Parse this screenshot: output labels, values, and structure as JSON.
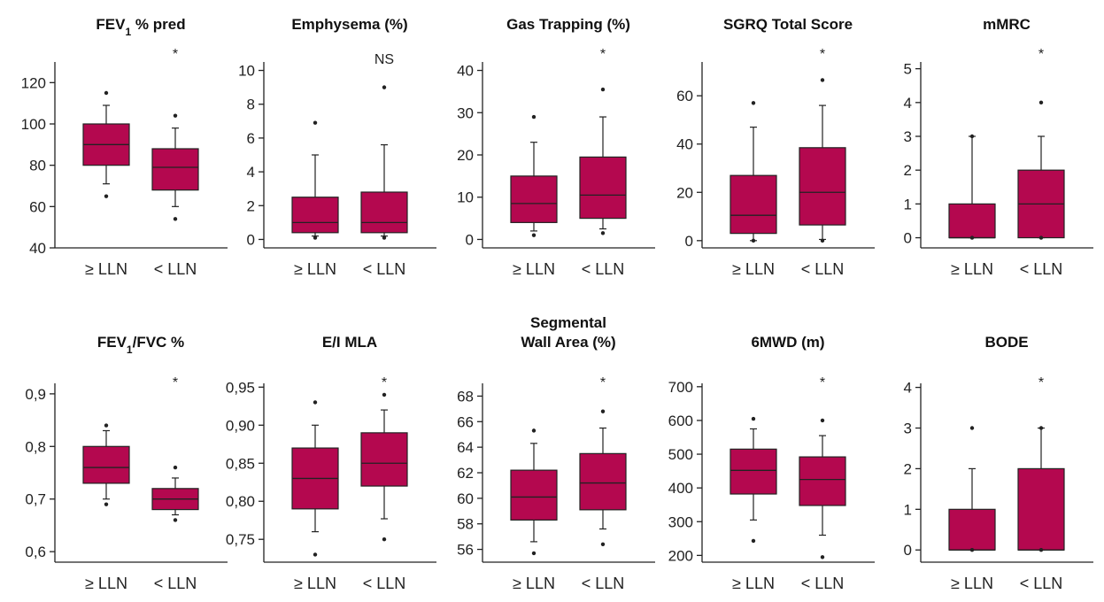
{
  "figure": {
    "box_color": "#B4084F",
    "stroke_color": "#222222"
  },
  "chart_data": [
    {
      "type": "box",
      "title": "FEV",
      "title_sub": "1",
      "title_suffix": " % pred",
      "annotation": "*",
      "yticks": [
        40,
        60,
        80,
        100,
        120
      ],
      "ylim": [
        40,
        130
      ],
      "categories": [
        "≥ LLN",
        "< LLN"
      ],
      "boxes": [
        {
          "whisker_low": 71,
          "q1": 80,
          "median": 90,
          "q3": 100,
          "whisker_high": 109,
          "outliers": [
            65,
            115
          ]
        },
        {
          "whisker_low": 60,
          "q1": 68,
          "median": 79,
          "q3": 88,
          "whisker_high": 98,
          "outliers": [
            54,
            104
          ]
        }
      ]
    },
    {
      "type": "box",
      "title": "Emphysema (%)",
      "annotation": "NS",
      "yticks": [
        0,
        2,
        4,
        6,
        8,
        10
      ],
      "ylim": [
        -0.5,
        10.5
      ],
      "categories": [
        "≥ LLN",
        "< LLN"
      ],
      "boxes": [
        {
          "whisker_low": 0.2,
          "q1": 0.4,
          "median": 1.0,
          "q3": 2.5,
          "whisker_high": 5.0,
          "outliers": [
            0.1,
            6.9
          ]
        },
        {
          "whisker_low": 0.2,
          "q1": 0.4,
          "median": 1.0,
          "q3": 2.8,
          "whisker_high": 5.6,
          "outliers": [
            0.1,
            9.0
          ]
        }
      ]
    },
    {
      "type": "box",
      "title": "Gas Trapping (%)",
      "annotation": "*",
      "yticks": [
        0,
        10,
        20,
        30,
        40
      ],
      "ylim": [
        -2,
        42
      ],
      "categories": [
        "≥ LLN",
        "< LLN"
      ],
      "boxes": [
        {
          "whisker_low": 2,
          "q1": 4,
          "median": 8.5,
          "q3": 15,
          "whisker_high": 23,
          "outliers": [
            1,
            29
          ]
        },
        {
          "whisker_low": 2.5,
          "q1": 5,
          "median": 10.5,
          "q3": 19.5,
          "whisker_high": 29,
          "outliers": [
            1.5,
            35.5
          ]
        }
      ]
    },
    {
      "type": "box",
      "title": "SGRQ Total Score",
      "annotation": "*",
      "yticks": [
        0,
        20,
        40,
        60
      ],
      "ylim": [
        -3,
        74
      ],
      "categories": [
        "≥ LLN",
        "< LLN"
      ],
      "boxes": [
        {
          "whisker_low": 0,
          "q1": 3,
          "median": 10.5,
          "q3": 27,
          "whisker_high": 47,
          "outliers": [
            0,
            57
          ]
        },
        {
          "whisker_low": 0.5,
          "q1": 6.5,
          "median": 20,
          "q3": 38.5,
          "whisker_high": 56,
          "outliers": [
            0,
            66.5
          ]
        }
      ]
    },
    {
      "type": "box",
      "title": "mMRC",
      "annotation": "*",
      "yticks": [
        0,
        1,
        2,
        3,
        4,
        5
      ],
      "ylim": [
        -0.3,
        5.2
      ],
      "categories": [
        "≥ LLN",
        "< LLN"
      ],
      "boxes": [
        {
          "whisker_low": 0,
          "q1": 0,
          "median": 0,
          "q3": 1,
          "whisker_high": 3,
          "outliers": [
            0,
            3
          ]
        },
        {
          "whisker_low": 0,
          "q1": 0,
          "median": 1,
          "q3": 2,
          "whisker_high": 3,
          "outliers": [
            0,
            4
          ]
        }
      ]
    },
    {
      "type": "box",
      "title": "FEV",
      "title_sub": "1",
      "title_suffix": "/FVC %",
      "annotation": "*",
      "yticks": [
        "0,6",
        "0,7",
        "0,8",
        "0,9"
      ],
      "ytick_values": [
        0.6,
        0.7,
        0.8,
        0.9
      ],
      "ylim": [
        0.58,
        0.92
      ],
      "categories": [
        "≥ LLN",
        "< LLN"
      ],
      "boxes": [
        {
          "whisker_low": 0.7,
          "q1": 0.73,
          "median": 0.76,
          "q3": 0.8,
          "whisker_high": 0.83,
          "outliers": [
            0.69,
            0.84
          ]
        },
        {
          "whisker_low": 0.67,
          "q1": 0.68,
          "median": 0.7,
          "q3": 0.72,
          "whisker_high": 0.74,
          "outliers": [
            0.66,
            0.76
          ]
        }
      ]
    },
    {
      "type": "box",
      "title": "E/I MLA",
      "annotation": "*",
      "yticks": [
        "0,75",
        "0,80",
        "0,85",
        "0,90",
        "0,95"
      ],
      "ytick_values": [
        0.75,
        0.8,
        0.85,
        0.9,
        0.95
      ],
      "ylim": [
        0.72,
        0.955
      ],
      "categories": [
        "≥ LLN",
        "< LLN"
      ],
      "boxes": [
        {
          "whisker_low": 0.76,
          "q1": 0.79,
          "median": 0.83,
          "q3": 0.87,
          "whisker_high": 0.9,
          "outliers": [
            0.73,
            0.93
          ]
        },
        {
          "whisker_low": 0.777,
          "q1": 0.82,
          "median": 0.85,
          "q3": 0.89,
          "whisker_high": 0.92,
          "outliers": [
            0.75,
            0.94
          ]
        }
      ]
    },
    {
      "type": "box",
      "title": "Segmental",
      "title_line2": "Wall Area (%)",
      "annotation": "*",
      "yticks": [
        56,
        58,
        60,
        62,
        64,
        66,
        68
      ],
      "ylim": [
        55,
        69
      ],
      "categories": [
        "≥ LLN",
        "< LLN"
      ],
      "boxes": [
        {
          "whisker_low": 56.6,
          "q1": 58.3,
          "median": 60.1,
          "q3": 62.2,
          "whisker_high": 64.3,
          "outliers": [
            55.7,
            65.3
          ]
        },
        {
          "whisker_low": 57.6,
          "q1": 59.1,
          "median": 61.2,
          "q3": 63.5,
          "whisker_high": 65.5,
          "outliers": [
            56.4,
            66.8
          ]
        }
      ]
    },
    {
      "type": "box",
      "title": "6MWD (m)",
      "annotation": "*",
      "yticks": [
        200,
        300,
        400,
        500,
        600,
        700
      ],
      "ylim": [
        180,
        710
      ],
      "categories": [
        "≥ LLN",
        "< LLN"
      ],
      "boxes": [
        {
          "whisker_low": 305,
          "q1": 382,
          "median": 452,
          "q3": 515,
          "whisker_high": 575,
          "outliers": [
            243,
            605
          ]
        },
        {
          "whisker_low": 260,
          "q1": 348,
          "median": 425,
          "q3": 492,
          "whisker_high": 555,
          "outliers": [
            195,
            600
          ]
        }
      ]
    },
    {
      "type": "box",
      "title": "BODE",
      "annotation": "*",
      "yticks": [
        0,
        1,
        2,
        3,
        4
      ],
      "ylim": [
        -0.3,
        4.1
      ],
      "categories": [
        "≥ LLN",
        "< LLN"
      ],
      "boxes": [
        {
          "whisker_low": 0,
          "q1": 0,
          "median": 0,
          "q3": 1,
          "whisker_high": 2,
          "outliers": [
            0,
            3
          ]
        },
        {
          "whisker_low": 0,
          "q1": 0,
          "median": 0,
          "q3": 2,
          "whisker_high": 3,
          "outliers": [
            0,
            3
          ]
        }
      ]
    }
  ]
}
